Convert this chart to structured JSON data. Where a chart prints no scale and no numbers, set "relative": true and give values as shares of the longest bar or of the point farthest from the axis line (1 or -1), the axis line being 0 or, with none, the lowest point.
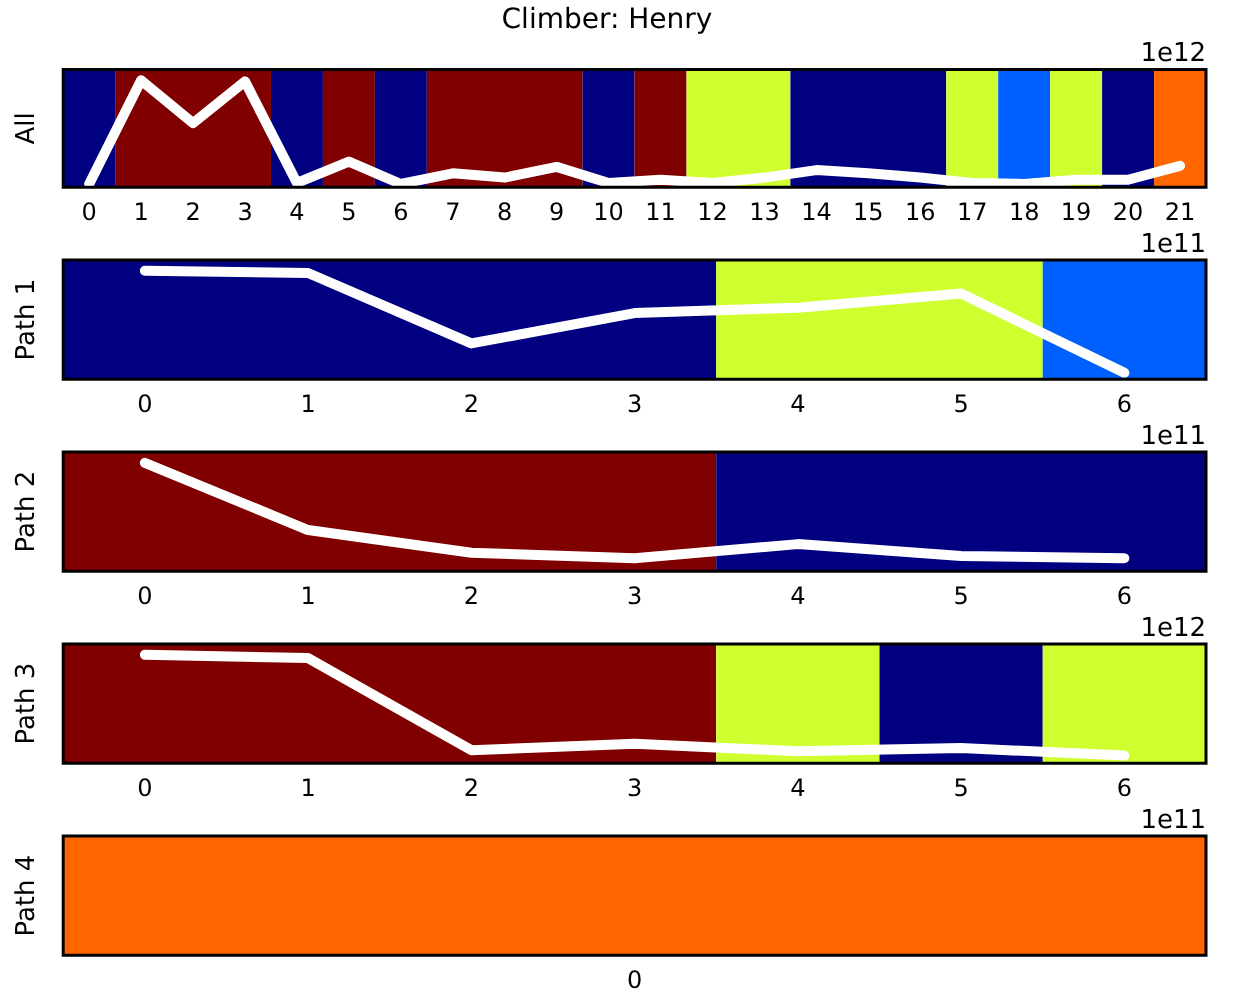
{
  "chart_data": [
    {
      "type": "line",
      "title": "Climber: Henry",
      "ylabel": "All",
      "relative": true,
      "marker": "none",
      "x": [
        0,
        1,
        2,
        3,
        4,
        5,
        6,
        7,
        8,
        9,
        10,
        11,
        12,
        13,
        14,
        15,
        16,
        17,
        18,
        19,
        20,
        21
      ],
      "xlim": [
        -0.5,
        21.5
      ],
      "xticks": [
        0,
        1,
        2,
        3,
        4,
        5,
        6,
        7,
        8,
        9,
        10,
        11,
        12,
        13,
        14,
        15,
        16,
        17,
        18,
        19,
        20,
        21
      ],
      "series": [
        {
          "color": "#ffffff",
          "values": [
            0.03,
            1,
            0.6,
            0.99,
            0.04,
            0.24,
            0.03,
            0.13,
            0.09,
            0.19,
            0.04,
            0.07,
            0.04,
            0.09,
            0.16,
            0.13,
            0.09,
            0.04,
            0.03,
            0.07,
            0.07,
            0.2
          ]
        }
      ],
      "bands": [
        {
          "axis": "x",
          "from": -0.5,
          "to": 0.5,
          "color": "#000080"
        },
        {
          "axis": "x",
          "from": 0.5,
          "to": 3.5,
          "color": "#800000"
        },
        {
          "axis": "x",
          "from": 3.5,
          "to": 4.5,
          "color": "#000080"
        },
        {
          "axis": "x",
          "from": 4.5,
          "to": 5.5,
          "color": "#800000"
        },
        {
          "axis": "x",
          "from": 5.5,
          "to": 6.5,
          "color": "#000080"
        },
        {
          "axis": "x",
          "from": 6.5,
          "to": 9.5,
          "color": "#800000"
        },
        {
          "axis": "x",
          "from": 9.5,
          "to": 10.5,
          "color": "#000080"
        },
        {
          "axis": "x",
          "from": 10.5,
          "to": 11.5,
          "color": "#800000"
        },
        {
          "axis": "x",
          "from": 11.5,
          "to": 13.5,
          "color": "#d0ff2f"
        },
        {
          "axis": "x",
          "from": 13.5,
          "to": 16.5,
          "color": "#000080"
        },
        {
          "axis": "x",
          "from": 16.5,
          "to": 17.5,
          "color": "#d0ff2f"
        },
        {
          "axis": "x",
          "from": 17.5,
          "to": 18.5,
          "color": "#0060ff"
        },
        {
          "axis": "x",
          "from": 18.5,
          "to": 19.5,
          "color": "#d0ff2f"
        },
        {
          "axis": "x",
          "from": 19.5,
          "to": 20.5,
          "color": "#000080"
        },
        {
          "axis": "x",
          "from": 20.5,
          "to": 21.5,
          "color": "#ff6600"
        }
      ],
      "annotations": [
        "1e12"
      ]
    },
    {
      "type": "line",
      "ylabel": "Path 1",
      "relative": true,
      "marker": "none",
      "x": [
        0,
        1,
        2,
        3,
        4,
        5,
        6
      ],
      "xlim": [
        -0.5,
        6.5
      ],
      "xticks": [
        0,
        1,
        2,
        3,
        4,
        5,
        6
      ],
      "series": [
        {
          "color": "#ffffff",
          "values": [
            1,
            0.98,
            0.33,
            0.61,
            0.66,
            0.79,
            0.06
          ]
        }
      ],
      "bands": [
        {
          "axis": "x",
          "from": -0.5,
          "to": 3.5,
          "color": "#000080"
        },
        {
          "axis": "x",
          "from": 3.5,
          "to": 5.5,
          "color": "#d0ff2f"
        },
        {
          "axis": "x",
          "from": 5.5,
          "to": 6.5,
          "color": "#0060ff"
        }
      ],
      "annotations": [
        "1e11"
      ]
    },
    {
      "type": "line",
      "ylabel": "Path 2",
      "relative": true,
      "marker": "none",
      "x": [
        0,
        1,
        2,
        3,
        4,
        5,
        6
      ],
      "xlim": [
        -0.5,
        6.5
      ],
      "xticks": [
        0,
        1,
        2,
        3,
        4,
        5,
        6
      ],
      "series": [
        {
          "color": "#ffffff",
          "values": [
            1,
            0.38,
            0.17,
            0.12,
            0.25,
            0.14,
            0.12
          ]
        }
      ],
      "bands": [
        {
          "axis": "x",
          "from": -0.5,
          "to": 3.5,
          "color": "#800000"
        },
        {
          "axis": "x",
          "from": 3.5,
          "to": 6.5,
          "color": "#000080"
        }
      ],
      "annotations": [
        "1e11"
      ]
    },
    {
      "type": "line",
      "ylabel": "Path 3",
      "relative": true,
      "marker": "none",
      "x": [
        0,
        1,
        2,
        3,
        4,
        5,
        6
      ],
      "xlim": [
        -0.5,
        6.5
      ],
      "xticks": [
        0,
        1,
        2,
        3,
        4,
        5,
        6
      ],
      "series": [
        {
          "color": "#ffffff",
          "values": [
            1,
            0.97,
            0.12,
            0.18,
            0.11,
            0.14,
            0.07
          ]
        }
      ],
      "bands": [
        {
          "axis": "x",
          "from": -0.5,
          "to": 3.5,
          "color": "#800000"
        },
        {
          "axis": "x",
          "from": 3.5,
          "to": 4.5,
          "color": "#d0ff2f"
        },
        {
          "axis": "x",
          "from": 4.5,
          "to": 5.5,
          "color": "#000080"
        },
        {
          "axis": "x",
          "from": 5.5,
          "to": 6.5,
          "color": "#d0ff2f"
        }
      ],
      "annotations": [
        "1e12"
      ]
    },
    {
      "type": "other",
      "ylabel": "Path 4",
      "categories": [
        "0"
      ],
      "bands": [
        {
          "axis": "x",
          "color": "#ff6600"
        }
      ],
      "annotations": [
        "1e11"
      ]
    }
  ]
}
